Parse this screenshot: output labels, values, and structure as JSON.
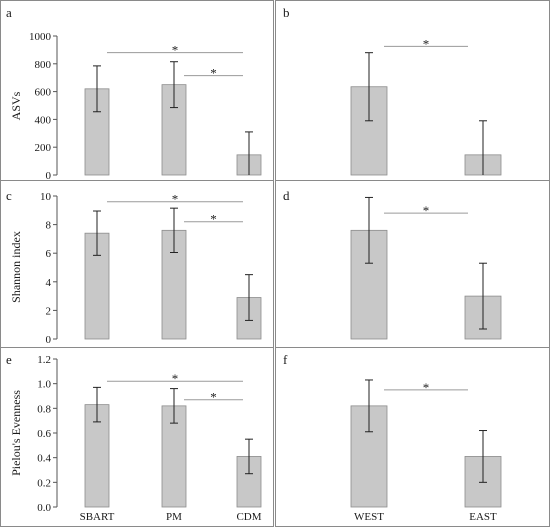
{
  "figure": {
    "colors": {
      "bar": "#c8c8c8",
      "bar_edge": "#8c8c8c",
      "error_bar": "#222222",
      "significance_line": "#9a9a9a",
      "border": "#8a8a8a"
    }
  },
  "chart_data": [
    {
      "panel": "a",
      "type": "bar",
      "categories": [
        "SBART",
        "PM",
        "CDM"
      ],
      "series": [
        {
          "values": [
            620,
            650,
            145
          ],
          "error": [
            165,
            165,
            165
          ]
        }
      ],
      "ylabel": "ASVs",
      "ylim": [
        0,
        1000
      ],
      "yticks": [
        0,
        200,
        400,
        600,
        800,
        1000
      ],
      "yticklabels": [
        "0",
        "200",
        "400",
        "600",
        "800",
        "1000"
      ],
      "show_xticklabels": false,
      "significance": [
        {
          "from": 0,
          "to": 2,
          "y": 880,
          "label": "*"
        },
        {
          "from": 1,
          "to": 2,
          "y": 715,
          "label": "*"
        }
      ],
      "grid": false,
      "legend": "none"
    },
    {
      "panel": "b",
      "type": "bar",
      "categories": [
        "WEST",
        "EAST"
      ],
      "series": [
        {
          "values": [
            635,
            145
          ],
          "error": [
            245,
            245
          ]
        }
      ],
      "ylim": [
        0,
        1000
      ],
      "show_yaxis": false,
      "show_xticklabels": false,
      "significance": [
        {
          "from": 0,
          "to": 1,
          "y": 925,
          "label": "*"
        }
      ],
      "grid": false,
      "legend": "none"
    },
    {
      "panel": "c",
      "type": "bar",
      "categories": [
        "SBART",
        "PM",
        "CDM"
      ],
      "series": [
        {
          "values": [
            7.4,
            7.6,
            2.9
          ],
          "error": [
            1.55,
            1.55,
            1.6
          ]
        }
      ],
      "ylabel": "Shannon index",
      "ylim": [
        0,
        10
      ],
      "yticks": [
        0,
        2,
        4,
        6,
        8,
        10
      ],
      "yticklabels": [
        "0",
        "2",
        "4",
        "6",
        "8",
        "10"
      ],
      "show_xticklabels": false,
      "significance": [
        {
          "from": 0,
          "to": 2,
          "y": 9.6,
          "label": "*"
        },
        {
          "from": 1,
          "to": 2,
          "y": 8.2,
          "label": "*"
        }
      ],
      "grid": false,
      "legend": "none"
    },
    {
      "panel": "d",
      "type": "bar",
      "categories": [
        "WEST",
        "EAST"
      ],
      "series": [
        {
          "values": [
            7.6,
            3.0
          ],
          "error": [
            2.3,
            2.3
          ]
        }
      ],
      "ylim": [
        0,
        10
      ],
      "show_yaxis": false,
      "show_xticklabels": false,
      "significance": [
        {
          "from": 0,
          "to": 1,
          "y": 8.8,
          "label": "*"
        }
      ],
      "grid": false,
      "legend": "none"
    },
    {
      "panel": "e",
      "type": "bar",
      "categories": [
        "SBART",
        "PM",
        "CDM"
      ],
      "series": [
        {
          "values": [
            0.83,
            0.82,
            0.41
          ],
          "error": [
            0.14,
            0.14,
            0.14
          ]
        }
      ],
      "ylabel": "Pielou's Evenness",
      "ylim": [
        0,
        1.2
      ],
      "yticks": [
        0,
        0.2,
        0.4,
        0.6,
        0.8,
        1.0,
        1.2
      ],
      "yticklabels": [
        "0.0",
        "0.2",
        "0.4",
        "0.6",
        "0.8",
        "1.0",
        "1.2"
      ],
      "show_xticklabels": true,
      "significance": [
        {
          "from": 0,
          "to": 2,
          "y": 1.02,
          "label": "*"
        },
        {
          "from": 1,
          "to": 2,
          "y": 0.87,
          "label": "*"
        }
      ],
      "grid": false,
      "legend": "none"
    },
    {
      "panel": "f",
      "type": "bar",
      "categories": [
        "WEST",
        "EAST"
      ],
      "series": [
        {
          "values": [
            0.82,
            0.41
          ],
          "error": [
            0.21,
            0.21
          ]
        }
      ],
      "ylim": [
        0,
        1.2
      ],
      "show_yaxis": false,
      "show_xticklabels": true,
      "significance": [
        {
          "from": 0,
          "to": 1,
          "y": 0.95,
          "label": "*"
        }
      ],
      "grid": false,
      "legend": "none"
    }
  ]
}
